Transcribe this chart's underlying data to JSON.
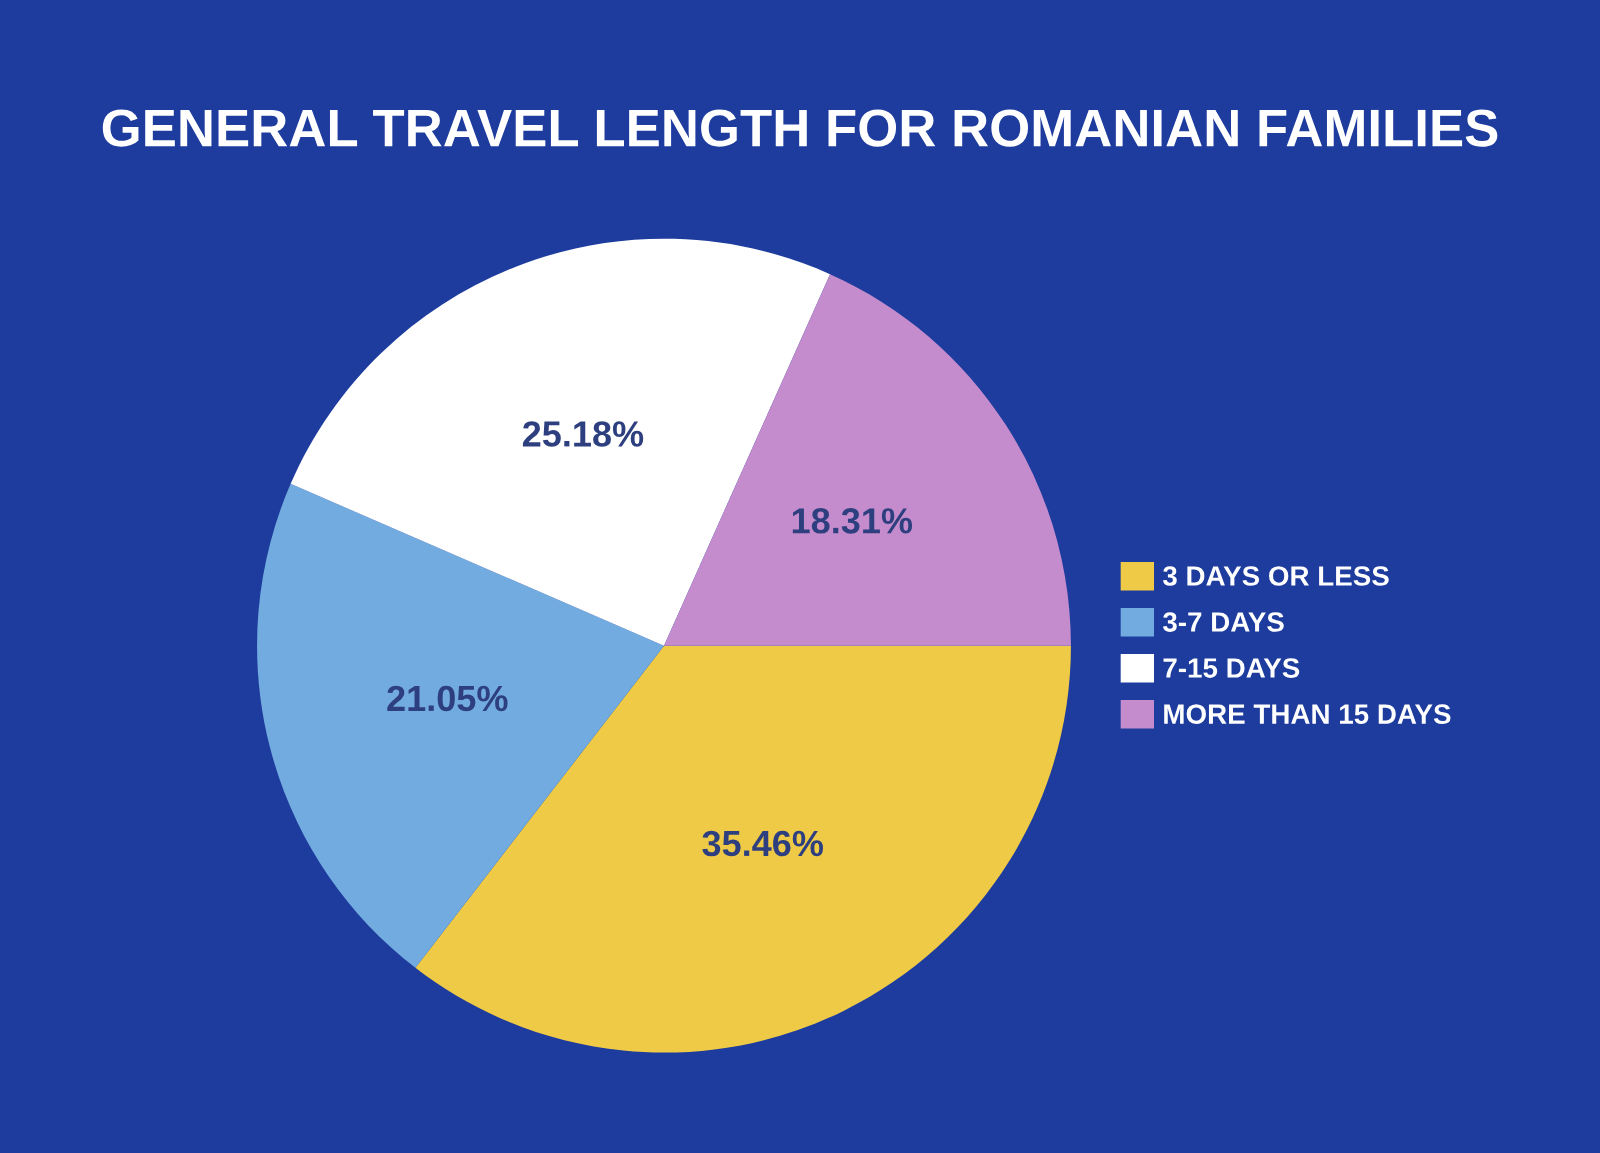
{
  "chart_data": {
    "type": "pie",
    "title": "GENERAL TRAVEL LENGTH FOR ROMANIAN FAMILIES",
    "categories": [
      "3 DAYS OR LESS",
      "3-7 DAYS",
      "7-15 DAYS",
      "MORE THAN 15 DAYS"
    ],
    "values": [
      35.46,
      21.05,
      25.18,
      18.31
    ],
    "colors": [
      "#efca47",
      "#72abdf",
      "#ffffff",
      "#c48ccc"
    ],
    "value_labels": [
      "35.46%",
      "21.05%",
      "25.18%",
      "18.31%"
    ],
    "legend": "right"
  }
}
